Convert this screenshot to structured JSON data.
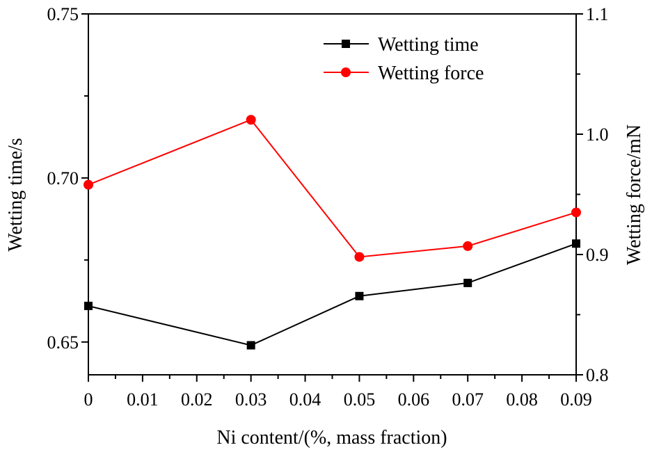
{
  "chart_data": {
    "type": "line",
    "x": [
      0,
      0.03,
      0.05,
      0.07,
      0.09
    ],
    "series": [
      {
        "name": "Wetting time",
        "axis": "left",
        "color": "#000000",
        "marker": "square",
        "values": [
          0.661,
          0.649,
          0.664,
          0.668,
          0.68
        ]
      },
      {
        "name": "Wetting force",
        "axis": "right",
        "color": "#ff0000",
        "marker": "circle",
        "values": [
          0.958,
          1.012,
          0.898,
          0.907,
          0.935
        ]
      }
    ],
    "xlabel": "Ni content/(%, mass fraction)",
    "ylabel_left": "Wetting time/s",
    "ylabel_right": "Wetting force/mN",
    "xlim": [
      0,
      0.09
    ],
    "ylim_left": [
      0.64,
      0.75
    ],
    "ylim_right": [
      0.8,
      1.1
    ],
    "x_ticks": [
      "0",
      "0.01",
      "0.02",
      "0.03",
      "0.04",
      "0.05",
      "0.06",
      "0.07",
      "0.08",
      "0.09"
    ],
    "y_left_ticks": [
      "0.65",
      "0.70",
      "0.75"
    ],
    "y_right_ticks": [
      "0.8",
      "0.9",
      "1.0",
      "1.1"
    ],
    "grid": false,
    "legend_position": "top-right"
  }
}
